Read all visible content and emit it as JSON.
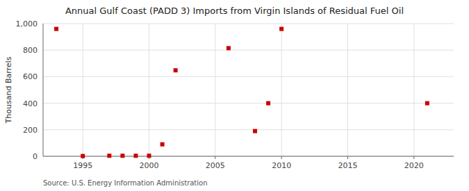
{
  "chart_data": {
    "type": "scatter",
    "title": "Annual Gulf Coast (PADD 3) Imports from Virgin Islands of Residual Fuel Oil",
    "ylabel": "Thousand Barrels",
    "source": "Source: U.S. Energy Information Administration",
    "x": [
      1993,
      1995,
      1997,
      1998,
      1999,
      2000,
      2001,
      2002,
      2006,
      2008,
      2009,
      2010,
      2021
    ],
    "values": [
      960,
      2,
      4,
      4,
      4,
      4,
      90,
      648,
      815,
      190,
      400,
      960,
      400
    ],
    "color": "#cc0000",
    "marker": "square",
    "xlim": [
      1992,
      2023
    ],
    "xticks": [
      1995,
      2000,
      2005,
      2010,
      2015,
      2020
    ],
    "ylim": [
      0,
      1000
    ],
    "yticks": [
      0,
      200,
      400,
      600,
      800,
      {
        "value": 1000,
        "label": "1,000"
      }
    ],
    "grid": true
  }
}
